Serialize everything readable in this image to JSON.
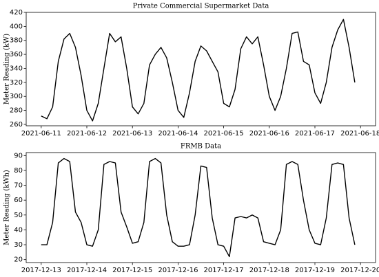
{
  "chart_data": [
    {
      "type": "line",
      "title": "Private Commercial Supermarket Data",
      "y_label": "Meter Reading (kW)",
      "xlim": [
        "2021-06-11",
        "2021-06-18"
      ],
      "xticks": [
        "2021-06-11",
        "2021-06-12",
        "2021-06-13",
        "2021-06-14",
        "2021-06-15",
        "2021-06-16",
        "2021-06-17",
        "2021-06-18"
      ],
      "ylim": [
        258,
        420
      ],
      "yticks": [
        260,
        280,
        300,
        320,
        340,
        360,
        380,
        400,
        420
      ],
      "series": [
        {
          "color": "#000000",
          "values": [
            272,
            268,
            285,
            350,
            382,
            390,
            370,
            330,
            280,
            265,
            290,
            340,
            390,
            378,
            385,
            340,
            285,
            275,
            290,
            345,
            360,
            370,
            355,
            320,
            280,
            270,
            305,
            350,
            372,
            365,
            350,
            335,
            290,
            285,
            310,
            368,
            385,
            375,
            385,
            345,
            300,
            280,
            300,
            340,
            390,
            392,
            350,
            345,
            305,
            290,
            320,
            370,
            395,
            410,
            370,
            320
          ]
        }
      ]
    },
    {
      "type": "line",
      "title": "FRMB Data",
      "y_label": "Meter Reading (kWh)",
      "xlim": [
        "2017-12-13",
        "2017-12-20"
      ],
      "xticks": [
        "2017-12-13",
        "2017-12-14",
        "2017-12-15",
        "2017-12-16",
        "2017-12-17",
        "2017-12-18",
        "2017-12-19",
        "2017-12-20"
      ],
      "ylim": [
        18,
        92
      ],
      "yticks": [
        20,
        30,
        40,
        50,
        60,
        70,
        80,
        90
      ],
      "series": [
        {
          "color": "#000000",
          "values": [
            30,
            30,
            45,
            85,
            88,
            86,
            52,
            45,
            30,
            29,
            40,
            84,
            86,
            85,
            52,
            42,
            31,
            32,
            45,
            86,
            88,
            85,
            50,
            32,
            29,
            29,
            30,
            50,
            83,
            82,
            48,
            30,
            29,
            22,
            48,
            49,
            48,
            50,
            48,
            32,
            31,
            30,
            40,
            84,
            86,
            84,
            60,
            40,
            31,
            30,
            48,
            84,
            85,
            84,
            48,
            30
          ]
        }
      ]
    }
  ]
}
